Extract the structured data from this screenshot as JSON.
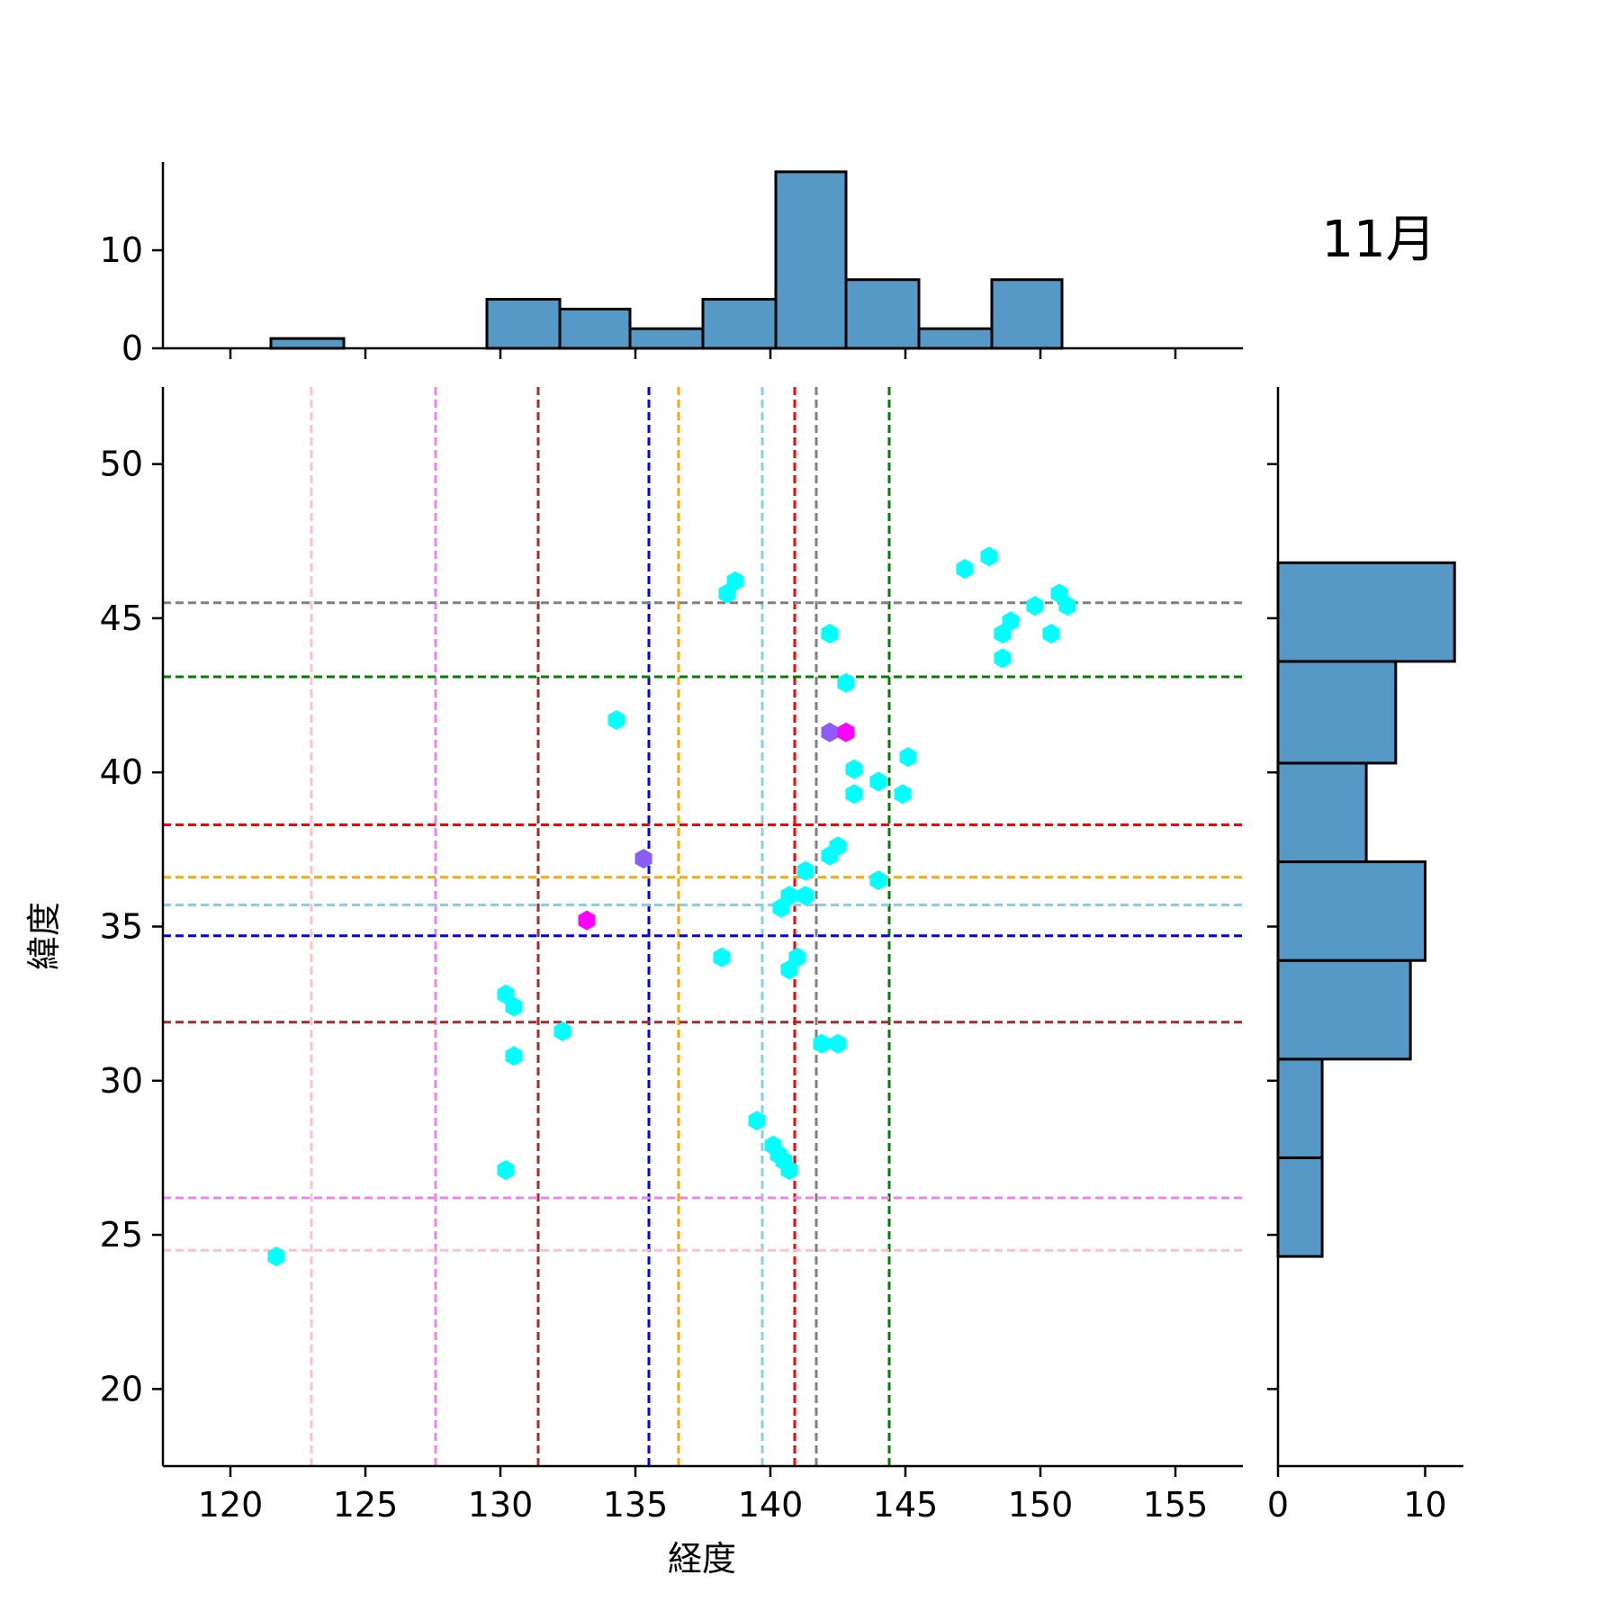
{
  "chart_data": {
    "type": "scatter",
    "title": "11月",
    "xlabel": "経度",
    "ylabel": "緯度",
    "xlim": [
      117.5,
      157.5
    ],
    "ylim": [
      17.5,
      52.5
    ],
    "xticks": [
      "120",
      "125",
      "130",
      "135",
      "140",
      "145",
      "150",
      "155"
    ],
    "xtick_values": [
      120,
      125,
      130,
      135,
      140,
      145,
      150,
      155
    ],
    "yticks": [
      "20",
      "25",
      "30",
      "35",
      "40",
      "45",
      "50"
    ],
    "ytick_values": [
      20,
      25,
      30,
      35,
      40,
      45,
      50
    ],
    "grid": false,
    "marker": "hexbin",
    "points": [
      {
        "x": 121.7,
        "y": 24.3,
        "c": "#00ffff"
      },
      {
        "x": 130.2,
        "y": 27.1,
        "c": "#00ffff"
      },
      {
        "x": 130.5,
        "y": 30.8,
        "c": "#00ffff"
      },
      {
        "x": 130.2,
        "y": 32.8,
        "c": "#00ffff"
      },
      {
        "x": 130.5,
        "y": 32.4,
        "c": "#00ffff"
      },
      {
        "x": 132.3,
        "y": 31.6,
        "c": "#00ffff"
      },
      {
        "x": 133.2,
        "y": 35.2,
        "c": "#ff00ff"
      },
      {
        "x": 134.3,
        "y": 41.7,
        "c": "#00ffff"
      },
      {
        "x": 135.3,
        "y": 37.2,
        "c": "#8b5cf6"
      },
      {
        "x": 138.2,
        "y": 34.0,
        "c": "#00ffff"
      },
      {
        "x": 138.4,
        "y": 45.8,
        "c": "#00ffff"
      },
      {
        "x": 138.7,
        "y": 46.2,
        "c": "#00ffff"
      },
      {
        "x": 139.5,
        "y": 28.7,
        "c": "#00ffff"
      },
      {
        "x": 140.1,
        "y": 27.9,
        "c": "#00ffff"
      },
      {
        "x": 140.3,
        "y": 27.6,
        "c": "#00ffff"
      },
      {
        "x": 140.5,
        "y": 27.4,
        "c": "#00ffff"
      },
      {
        "x": 140.7,
        "y": 27.1,
        "c": "#00ffff"
      },
      {
        "x": 140.4,
        "y": 35.6,
        "c": "#00ffff"
      },
      {
        "x": 140.7,
        "y": 36.0,
        "c": "#00ffff"
      },
      {
        "x": 140.7,
        "y": 33.6,
        "c": "#00ffff"
      },
      {
        "x": 141.0,
        "y": 34.0,
        "c": "#00ffff"
      },
      {
        "x": 141.3,
        "y": 36.0,
        "c": "#00ffff"
      },
      {
        "x": 141.3,
        "y": 36.8,
        "c": "#00ffff"
      },
      {
        "x": 141.9,
        "y": 31.2,
        "c": "#00ffff"
      },
      {
        "x": 142.5,
        "y": 31.2,
        "c": "#00ffff"
      },
      {
        "x": 142.2,
        "y": 37.3,
        "c": "#00ffff"
      },
      {
        "x": 142.5,
        "y": 37.6,
        "c": "#00ffff"
      },
      {
        "x": 142.2,
        "y": 41.3,
        "c": "#8b5cf6"
      },
      {
        "x": 142.8,
        "y": 41.3,
        "c": "#ff00ff"
      },
      {
        "x": 142.2,
        "y": 44.5,
        "c": "#00ffff"
      },
      {
        "x": 142.8,
        "y": 42.9,
        "c": "#00ffff"
      },
      {
        "x": 143.1,
        "y": 40.1,
        "c": "#00ffff"
      },
      {
        "x": 143.1,
        "y": 39.3,
        "c": "#00ffff"
      },
      {
        "x": 144.0,
        "y": 39.7,
        "c": "#00ffff"
      },
      {
        "x": 144.0,
        "y": 36.5,
        "c": "#00ffff"
      },
      {
        "x": 144.9,
        "y": 39.3,
        "c": "#00ffff"
      },
      {
        "x": 145.1,
        "y": 40.5,
        "c": "#00ffff"
      },
      {
        "x": 147.2,
        "y": 46.6,
        "c": "#00ffff"
      },
      {
        "x": 148.1,
        "y": 47.0,
        "c": "#00ffff"
      },
      {
        "x": 148.6,
        "y": 44.5,
        "c": "#00ffff"
      },
      {
        "x": 148.6,
        "y": 43.7,
        "c": "#00ffff"
      },
      {
        "x": 148.9,
        "y": 44.9,
        "c": "#00ffff"
      },
      {
        "x": 149.8,
        "y": 45.4,
        "c": "#00ffff"
      },
      {
        "x": 150.4,
        "y": 44.5,
        "c": "#00ffff"
      },
      {
        "x": 150.7,
        "y": 45.8,
        "c": "#00ffff"
      },
      {
        "x": 151.0,
        "y": 45.4,
        "c": "#00ffff"
      }
    ],
    "vlines": [
      {
        "x": 123.0,
        "color": "#ffc0cb"
      },
      {
        "x": 127.6,
        "color": "#ee82ee"
      },
      {
        "x": 131.4,
        "color": "#a52a2a"
      },
      {
        "x": 135.5,
        "color": "#0000ff"
      },
      {
        "x": 136.6,
        "color": "#ffa500"
      },
      {
        "x": 139.7,
        "color": "#87ceeb"
      },
      {
        "x": 140.9,
        "color": "#ff0000"
      },
      {
        "x": 141.7,
        "color": "#808080"
      },
      {
        "x": 144.4,
        "color": "#008000"
      }
    ],
    "hlines": [
      {
        "y": 24.5,
        "color": "#ffc0cb"
      },
      {
        "y": 26.2,
        "color": "#ee82ee"
      },
      {
        "y": 31.9,
        "color": "#a52a2a"
      },
      {
        "y": 34.7,
        "color": "#0000ff"
      },
      {
        "y": 35.7,
        "color": "#87ceeb"
      },
      {
        "y": 36.6,
        "color": "#ffa500"
      },
      {
        "y": 38.3,
        "color": "#ff0000"
      },
      {
        "y": 43.1,
        "color": "#008000"
      },
      {
        "y": 45.5,
        "color": "#808080"
      }
    ],
    "top_histogram": {
      "bins": [
        121.5,
        124.2,
        126.8,
        129.5,
        132.2,
        134.8,
        137.5,
        140.2,
        142.8,
        145.5,
        148.2,
        150.8
      ],
      "counts": [
        1,
        0,
        0,
        5,
        4,
        2,
        5,
        18,
        7,
        2,
        7
      ],
      "ylim": [
        0,
        19
      ],
      "yticks": [
        "0",
        "10"
      ],
      "ytick_values": [
        0,
        10
      ],
      "fill": "#5799c6"
    },
    "right_histogram": {
      "bins": [
        24.3,
        27.5,
        30.7,
        33.9,
        37.1,
        40.3,
        43.6,
        46.8
      ],
      "counts": [
        3,
        3,
        9,
        10,
        6,
        8,
        12
      ],
      "xlim": [
        0,
        12.6
      ],
      "xticks": [
        "0",
        "10"
      ],
      "xtick_values": [
        0,
        10
      ],
      "fill": "#5799c6"
    }
  }
}
